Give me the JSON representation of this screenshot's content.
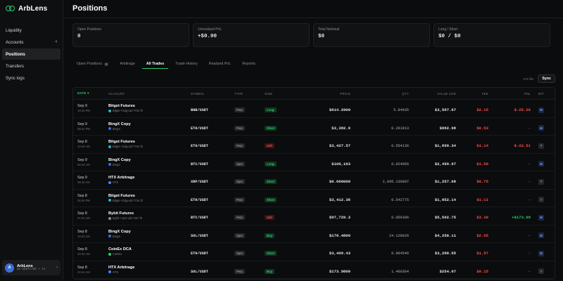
{
  "app": {
    "name": "ArbLens"
  },
  "sidebar": {
    "items": [
      {
        "label": "Liquidity",
        "count": ""
      },
      {
        "label": "Accounts",
        "count": "4"
      },
      {
        "label": "Positions",
        "count": ""
      },
      {
        "label": "Transfers",
        "count": ""
      },
      {
        "label": "Sync logs",
        "count": ""
      }
    ],
    "active": "Positions"
  },
  "user": {
    "initial": "A",
    "name": "ArbLens",
    "id": "wx-1b5fc7b9 • ts"
  },
  "header": {
    "title": "Positions"
  },
  "stats": [
    {
      "label": "Open Positions",
      "value": "0"
    },
    {
      "label": "Unrealized PnL",
      "value": "+$0.00"
    },
    {
      "label": "Total Notional",
      "value": "$0"
    },
    {
      "label": "Long / Short",
      "value": "$0 / $0"
    }
  ],
  "tabs": [
    {
      "label": "Open Positions",
      "count": "0"
    },
    {
      "label": "Arbitrage",
      "count": ""
    },
    {
      "label": "All Trades",
      "count": ""
    },
    {
      "label": "Trade History",
      "count": ""
    },
    {
      "label": "Realized PnL",
      "count": ""
    },
    {
      "label": "Reports",
      "count": ""
    }
  ],
  "active_tab": "All Trades",
  "toolbar": {
    "rows_label": "175 fills",
    "sync_label": "Sync"
  },
  "table": {
    "columns": [
      "DATE ▾",
      "ACCOUNT",
      "SYMBOL",
      "TYPE",
      "SIDE",
      "PRICE",
      "QTY",
      "VALUE USD",
      "FEE",
      "PNL",
      "M/T"
    ],
    "rows": [
      {
        "date": "Sep 9",
        "time": "10:44 PM",
        "account": "Bitget Futures",
        "sub": "Bitget • bdg-uid-772e f0",
        "exchange_color": "#1fb6c9",
        "symbol": "BNB/USDT",
        "type": "Perp",
        "side": "Long",
        "side_class": "long",
        "price": "$614.2900",
        "qty": "5.84035",
        "value": "$3,587.67",
        "fee": "$2.15",
        "pnl": "$-25.20",
        "pnl_class": "neg",
        "mt": "M"
      },
      {
        "date": "Sep 9",
        "time": "08:44 PM",
        "account": "BingX Copy",
        "sub": "BingX",
        "exchange_color": "#3b6fd8",
        "symbol": "ETH/USDT",
        "type": "Perp",
        "side": "Short",
        "side_class": "short",
        "price": "$3,382.9",
        "qty": "0.261013",
        "value": "$882.98",
        "fee": "$0.53",
        "pnl": "—",
        "pnl_class": "none",
        "mt": "M"
      },
      {
        "date": "Sep 8",
        "time": "10:44 AM",
        "account": "Bitget Futures",
        "sub": "Bitget • bdg-uid-772e f0",
        "exchange_color": "#1fb6c9",
        "symbol": "ETH/USDT",
        "type": "Perp",
        "side": "Sell",
        "side_class": "sell",
        "price": "$3,427.57",
        "qty": "0.554136",
        "value": "$1,899.34",
        "fee": "$1.14",
        "pnl": "$-22.51",
        "pnl_class": "neg",
        "mt": "T"
      },
      {
        "date": "Sep 9",
        "time": "08:44 AM",
        "account": "BingX Copy",
        "sub": "BingX",
        "exchange_color": "#3b6fd8",
        "symbol": "BTC/USDT",
        "type": "Spot",
        "side": "Long",
        "side_class": "long",
        "price": "$100,163",
        "qty": "0.024956",
        "value": "$2,499.67",
        "fee": "$1.50",
        "pnl": "—",
        "pnl_class": "none",
        "mt": "M"
      },
      {
        "date": "Sep 9",
        "time": "08:44 AM",
        "account": "HTX Arbitrage",
        "sub": "HTX",
        "exchange_color": "#3d8bff",
        "symbol": "XRP/USDT",
        "type": "Spot",
        "side": "Short",
        "side_class": "short",
        "price": "$0.600000",
        "qty": "2,095.130007",
        "value": "$1,257.08",
        "fee": "$0.75",
        "pnl": "—",
        "pnl_class": "none",
        "mt": "T"
      },
      {
        "date": "Sep 8",
        "time": "08:44 PM",
        "account": "Bitget Futures",
        "sub": "Bitget • bdg-uid-772e f0",
        "exchange_color": "#1fb6c9",
        "symbol": "ETH/USDT",
        "type": "Perp",
        "side": "Short",
        "side_class": "short",
        "price": "$3,412.36",
        "qty": "0.542775",
        "value": "$1,852.14",
        "fee": "$1.11",
        "pnl": "—",
        "pnl_class": "none",
        "mt": "T"
      },
      {
        "date": "Sep 8",
        "time": "07:44 AM",
        "account": "Bybit Futures",
        "sub": "Bybit • sym-uid-7437 f0",
        "exchange_color": "#8a8f94",
        "symbol": "BTC/USDT",
        "type": "Perp",
        "side": "Sell",
        "side_class": "sell",
        "price": "$97,729.3",
        "qty": "0.056306",
        "value": "$5,502.75",
        "fee": "$3.30",
        "pnl": "+$173.09",
        "pnl_class": "pos",
        "mt": "M"
      },
      {
        "date": "Sep 8",
        "time": "10:44 AM",
        "account": "BingX Copy",
        "sub": "BingX",
        "exchange_color": "#3b6fd8",
        "symbol": "SOL/USDT",
        "type": "Spot",
        "side": "Buy",
        "side_class": "buy",
        "price": "$176.4800",
        "qty": "24.128026",
        "value": "$4,258.11",
        "fee": "$2.55",
        "pnl": "—",
        "pnl_class": "none",
        "mt": "M"
      },
      {
        "date": "Sep 8",
        "time": "10:44 AM",
        "account": "CoinEx DCA",
        "sub": "CoinEx",
        "exchange_color": "#2ecc71",
        "symbol": "ETH/USDT",
        "type": "Spot",
        "side": "Short",
        "side_class": "short",
        "price": "$3,409.43",
        "qty": "0.964546",
        "value": "$3,288.55",
        "fee": "$1.97",
        "pnl": "—",
        "pnl_class": "none",
        "mt": "M"
      },
      {
        "date": "Sep 8",
        "time": "10:44 AM",
        "account": "HTX Arbitrage",
        "sub": "HTX",
        "exchange_color": "#3d8bff",
        "symbol": "SOL/USDT",
        "type": "Perp",
        "side": "Buy",
        "side_class": "buy",
        "price": "$173.9800",
        "qty": "1.460364",
        "value": "$254.07",
        "fee": "$0.15",
        "pnl": "—",
        "pnl_class": "none",
        "mt": "T"
      }
    ]
  },
  "colors": {
    "accent": "#2ecc71",
    "negative": "#ff4d4d",
    "background": "#0b0c0d"
  }
}
